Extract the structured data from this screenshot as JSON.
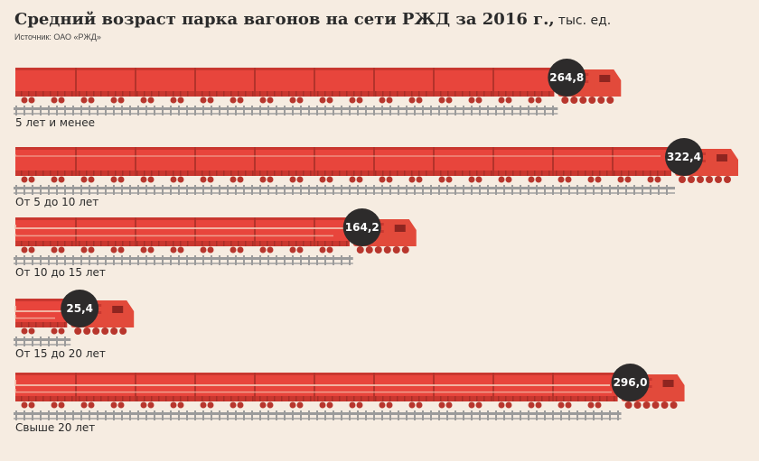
{
  "header": {
    "title": "Средний возраст парка вагонов на сети РЖД за 2016 г.,",
    "unit": "тыс. ед.",
    "source": "Источник: ОАО «РЖД»"
  },
  "colors": {
    "background": "#f6ece1",
    "wagon": "#e8453c",
    "wagon_dark": "#c9372f",
    "locomotive": "#e24a3b",
    "wheel": "#b8362d",
    "rail": "#9b9b9b",
    "badge": "#2d2b2b",
    "rust": "#f3c7b4"
  },
  "chart_data": {
    "type": "bar",
    "orientation": "horizontal",
    "title": "Средний возраст парка вагонов на сети РЖД за 2016 г.,",
    "unit": "тыс. ед.",
    "categories": [
      "5 лет и менее",
      "От 5 до 10 лет",
      "От 10 до 15 лет",
      "От 15 до 20 лет",
      "Свыше 20 лет"
    ],
    "values": [
      264.8,
      322.4,
      164.2,
      25.4,
      296.0
    ],
    "value_labels": [
      "264,8",
      "322,4",
      "164,2",
      "25,4",
      "296,0"
    ],
    "wear": [
      "none",
      "light",
      "medium",
      "heavy",
      "heavy"
    ],
    "xlim": [
      0,
      322.4
    ],
    "grid": false,
    "legend": "none"
  }
}
